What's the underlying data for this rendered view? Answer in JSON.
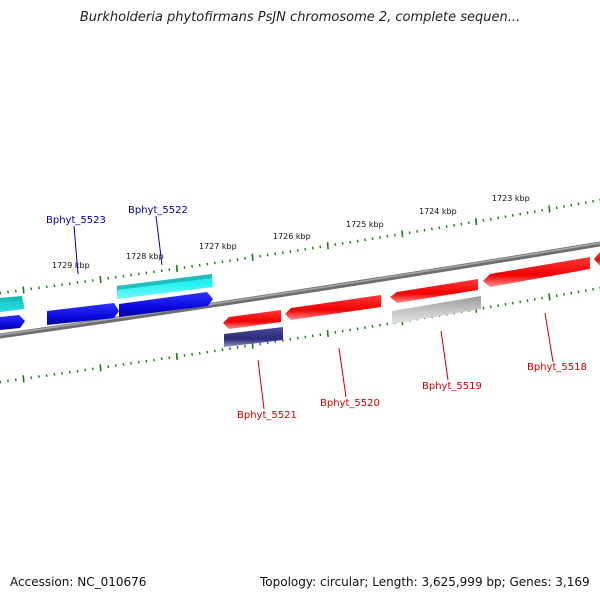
{
  "title": "Burkholderia phytofirmans PsJN chromosome 2, complete sequen...",
  "footer": {
    "accession": "Accession: NC_010676",
    "summary": "Topology: circular; Length: 3,625,999 bp; Genes: 3,169"
  },
  "kbp_labels": [
    "1729 kbp",
    "1728 kbp",
    "1727 kbp",
    "1726 kbp",
    "1725 kbp",
    "1724 kbp",
    "1723 kbp"
  ],
  "gene_labels": {
    "top": [
      "Bphyt_5523",
      "Bphyt_5522"
    ],
    "bottom": [
      "Bphyt_5521",
      "Bphyt_5520",
      "Bphyt_5519",
      "Bphyt_5518"
    ]
  },
  "colors": {
    "blue": "#1010e8",
    "cyan": "#10d8d8",
    "teal": "#10b8b8",
    "red": "#ee1010",
    "gray": "#b8b8b8",
    "navy": "#3a3a88",
    "backbone": "#808080",
    "tick": "#1a7a1a",
    "label_blue": "#0000aa",
    "label_red": "#cc0000"
  }
}
